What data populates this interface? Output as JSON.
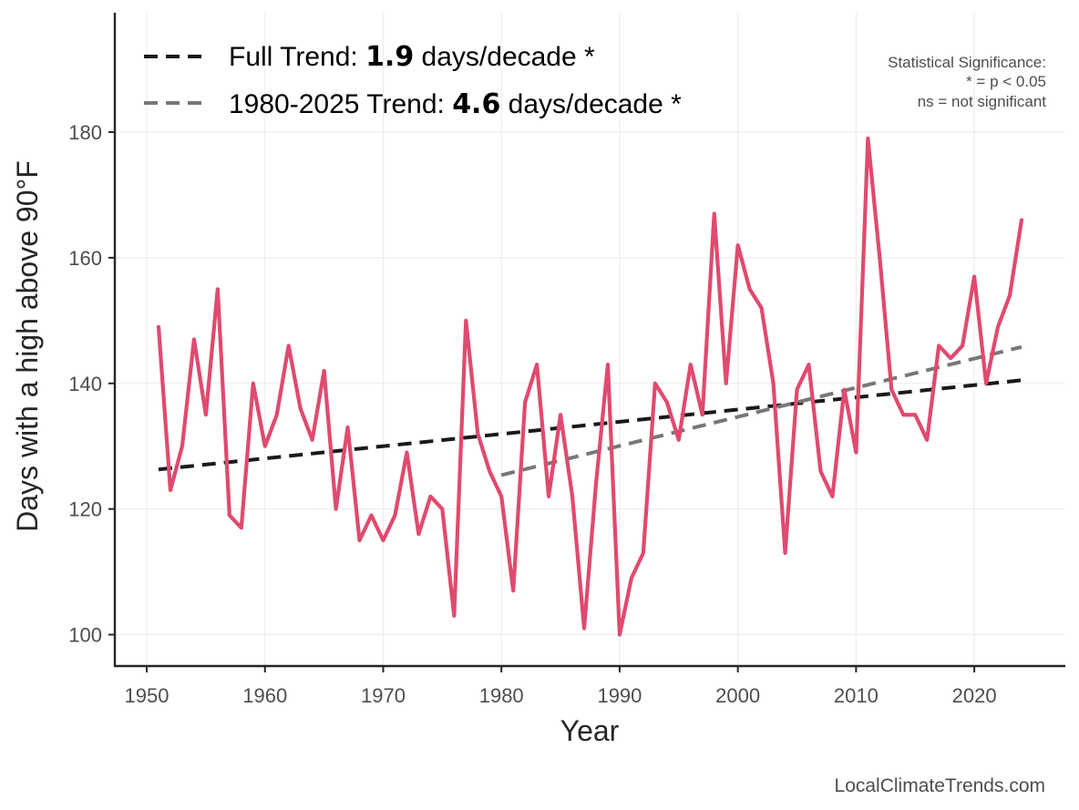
{
  "chart_data": {
    "type": "line",
    "xlabel": "Year",
    "ylabel": "Days with a high above 90°F",
    "xlim": [
      1947.3,
      2027.7
    ],
    "ylim": [
      95,
      199
    ],
    "x_ticks": [
      1950,
      1960,
      1970,
      1980,
      1990,
      2000,
      2010,
      2020
    ],
    "y_ticks": [
      100,
      120,
      140,
      160,
      180
    ],
    "grid": true,
    "series": [
      {
        "color": "#e04a6e",
        "x": [
          1951,
          1952,
          1953,
          1954,
          1955,
          1956,
          1957,
          1958,
          1959,
          1960,
          1961,
          1962,
          1963,
          1964,
          1965,
          1966,
          1967,
          1968,
          1969,
          1970,
          1971,
          1972,
          1973,
          1974,
          1975,
          1976,
          1977,
          1978,
          1979,
          1980,
          1981,
          1982,
          1983,
          1984,
          1985,
          1986,
          1987,
          1988,
          1989,
          1990,
          1991,
          1992,
          1993,
          1994,
          1995,
          1996,
          1997,
          1998,
          1999,
          2000,
          2001,
          2002,
          2003,
          2004,
          2005,
          2006,
          2007,
          2008,
          2009,
          2010,
          2011,
          2012,
          2013,
          2014,
          2015,
          2016,
          2017,
          2018,
          2019,
          2020,
          2021,
          2022,
          2023,
          2024
        ],
        "values": [
          149,
          123,
          130,
          147,
          135,
          155,
          119,
          117,
          140,
          130,
          135,
          146,
          136,
          131,
          142,
          120,
          133,
          115,
          119,
          115,
          119,
          129,
          116,
          122,
          120,
          103,
          150,
          132,
          126,
          122,
          107,
          137,
          143,
          122,
          135,
          122,
          101,
          124,
          143,
          100,
          109,
          113,
          140,
          137,
          131,
          143,
          135,
          167,
          140,
          162,
          155,
          152,
          140,
          113,
          139,
          143,
          126,
          122,
          139,
          129,
          179,
          160,
          139,
          135,
          135,
          131,
          146,
          144,
          146,
          157,
          140,
          149,
          154,
          166
        ]
      }
    ],
    "trend_lines": [
      {
        "name": "Full Trend",
        "x": [
          1951,
          2024
        ],
        "values": [
          126.3,
          140.5
        ],
        "color": "#1a1a1a"
      },
      {
        "name": "1980-2025 Trend",
        "x": [
          1980,
          2024
        ],
        "values": [
          125.4,
          145.8
        ],
        "color": "#777777"
      }
    ],
    "legend": {
      "placement": "top-left",
      "entries": [
        {
          "prefix": "Full Trend: ",
          "value": "1.9",
          "suffix": " days/decade *"
        },
        {
          "prefix": "1980-2025 Trend: ",
          "value": "4.6",
          "suffix": " days/decade *"
        }
      ]
    },
    "significance_note": {
      "placement": "top-right",
      "lines": [
        "Statistical Significance:",
        "* = p < 0.05",
        "ns = not significant"
      ]
    },
    "source": "LocalClimateTrends.com"
  }
}
